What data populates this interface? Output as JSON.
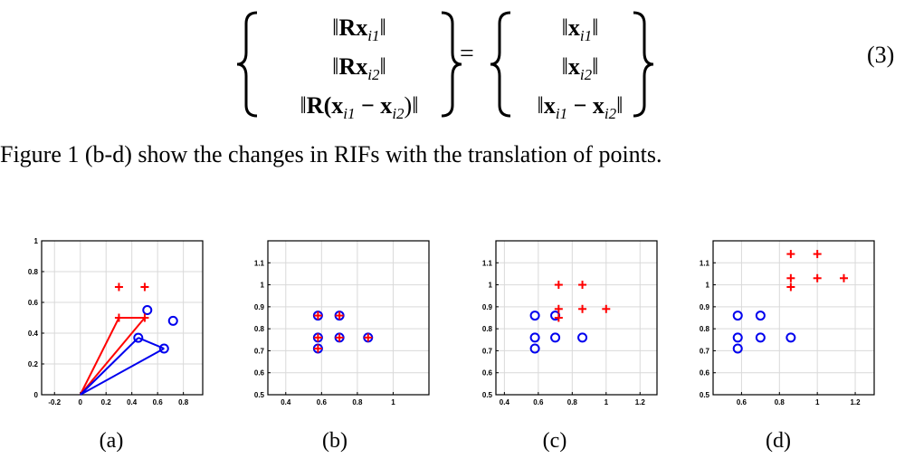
{
  "equation": {
    "left_rows": [
      {
        "pre": "‖",
        "bold": "Rx",
        "sub": "i1",
        "post": "‖"
      },
      {
        "pre": "‖",
        "bold": "Rx",
        "sub": "i2",
        "post": "‖"
      },
      {
        "pre": "‖",
        "bold": "R",
        "mid": "(x",
        "sub": "i1",
        "mid2": " − x",
        "sub2": "i2",
        "post": ")‖"
      }
    ],
    "right_rows": [
      {
        "pre": "‖",
        "bold": "x",
        "sub": "i1",
        "post": "‖"
      },
      {
        "pre": "‖",
        "bold": "x",
        "sub": "i2",
        "post": "‖"
      },
      {
        "pre": "‖",
        "bold": "x",
        "sub": "i1",
        "mid2": " − x",
        "sub2": "i2",
        "post": "‖"
      }
    ],
    "equals": "=",
    "number": "(3)"
  },
  "sentence": "Figure 1 (b-d) show the changes in RIFs with the translation of points.",
  "colors": {
    "red": "#ff0000",
    "blue": "#0000ee",
    "grid": "#d9d9d9"
  },
  "chart_data": [
    {
      "type": "scatter",
      "caption": "(a)",
      "xlim": [
        -0.3,
        0.95
      ],
      "ylim": [
        0,
        1
      ],
      "xticks": [
        -0.2,
        0,
        0.2,
        0.4,
        0.6,
        0.8
      ],
      "yticks": [
        0,
        0.2,
        0.4,
        0.6,
        0.8,
        1
      ],
      "xtick_labels": [
        "-0.2",
        "0",
        "0.2",
        "0.4",
        "0.6",
        "0.8"
      ],
      "ytick_labels": [
        "0",
        "0.2",
        "0.4",
        "0.6",
        "0.8",
        "1"
      ],
      "grid": true,
      "red_points": [
        [
          0.3,
          0.7
        ],
        [
          0.5,
          0.7
        ],
        [
          0.3,
          0.5
        ],
        [
          0.5,
          0.5
        ]
      ],
      "blue_points": [
        [
          0.52,
          0.55
        ],
        [
          0.72,
          0.48
        ],
        [
          0.45,
          0.37
        ],
        [
          0.65,
          0.3
        ]
      ],
      "red_lines": [
        [
          [
            0,
            0
          ],
          [
            0.3,
            0.5
          ]
        ],
        [
          [
            0,
            0
          ],
          [
            0.5,
            0.5
          ]
        ],
        [
          [
            0.3,
            0.5
          ],
          [
            0.5,
            0.5
          ]
        ]
      ],
      "blue_lines": [
        [
          [
            0,
            0
          ],
          [
            0.45,
            0.37
          ]
        ],
        [
          [
            0,
            0
          ],
          [
            0.65,
            0.3
          ]
        ],
        [
          [
            0.45,
            0.37
          ],
          [
            0.65,
            0.3
          ]
        ]
      ]
    },
    {
      "type": "scatter",
      "caption": "(b)",
      "xlim": [
        0.3,
        1.2
      ],
      "ylim": [
        0.5,
        1.2
      ],
      "xticks": [
        0.4,
        0.6,
        0.8,
        1
      ],
      "yticks": [
        0.5,
        0.6,
        0.7,
        0.8,
        0.9,
        1,
        1.1
      ],
      "xtick_labels": [
        "0.4",
        "0.6",
        "0.8",
        "1"
      ],
      "ytick_labels": [
        "0.5",
        "0.6",
        "0.7",
        "0.8",
        "0.9",
        "1",
        "1.1"
      ],
      "grid": true,
      "red_points": [
        [
          0.58,
          0.86
        ],
        [
          0.7,
          0.86
        ],
        [
          0.58,
          0.76
        ],
        [
          0.7,
          0.76
        ],
        [
          0.86,
          0.76
        ],
        [
          0.58,
          0.71
        ]
      ],
      "blue_points": [
        [
          0.58,
          0.86
        ],
        [
          0.7,
          0.86
        ],
        [
          0.58,
          0.76
        ],
        [
          0.7,
          0.76
        ],
        [
          0.86,
          0.76
        ],
        [
          0.58,
          0.71
        ]
      ],
      "red_lines": [],
      "blue_lines": []
    },
    {
      "type": "scatter",
      "caption": "(c)",
      "xlim": [
        0.35,
        1.3
      ],
      "ylim": [
        0.5,
        1.2
      ],
      "xticks": [
        0.4,
        0.6,
        0.8,
        1,
        1.2
      ],
      "yticks": [
        0.5,
        0.6,
        0.7,
        0.8,
        0.9,
        1,
        1.1
      ],
      "xtick_labels": [
        "0.4",
        "0.6",
        "0.8",
        "1",
        "1.2"
      ],
      "ytick_labels": [
        "0.5",
        "0.6",
        "0.7",
        "0.8",
        "0.9",
        "1",
        "1.1"
      ],
      "grid": true,
      "red_points": [
        [
          0.72,
          1.0
        ],
        [
          0.86,
          1.0
        ],
        [
          0.72,
          0.89
        ],
        [
          0.86,
          0.89
        ],
        [
          1.0,
          0.89
        ],
        [
          0.72,
          0.85
        ]
      ],
      "blue_points": [
        [
          0.58,
          0.86
        ],
        [
          0.7,
          0.86
        ],
        [
          0.58,
          0.76
        ],
        [
          0.7,
          0.76
        ],
        [
          0.86,
          0.76
        ],
        [
          0.58,
          0.71
        ]
      ],
      "red_lines": [],
      "blue_lines": []
    },
    {
      "type": "scatter",
      "caption": "(d)",
      "xlim": [
        0.45,
        1.3
      ],
      "ylim": [
        0.5,
        1.2
      ],
      "xticks": [
        0.6,
        0.8,
        1,
        1.2
      ],
      "yticks": [
        0.5,
        0.6,
        0.7,
        0.8,
        0.9,
        1,
        1.1
      ],
      "xtick_labels": [
        "0.6",
        "0.8",
        "1",
        "1.2"
      ],
      "ytick_labels": [
        "0.5",
        "0.6",
        "0.7",
        "0.8",
        "0.9",
        "1",
        "1.1"
      ],
      "grid": true,
      "red_points": [
        [
          0.86,
          1.14
        ],
        [
          1.0,
          1.14
        ],
        [
          0.86,
          1.03
        ],
        [
          1.0,
          1.03
        ],
        [
          1.14,
          1.03
        ],
        [
          0.86,
          0.99
        ]
      ],
      "blue_points": [
        [
          0.58,
          0.86
        ],
        [
          0.7,
          0.86
        ],
        [
          0.58,
          0.76
        ],
        [
          0.7,
          0.76
        ],
        [
          0.86,
          0.76
        ],
        [
          0.58,
          0.71
        ]
      ],
      "red_lines": [],
      "blue_lines": []
    }
  ]
}
